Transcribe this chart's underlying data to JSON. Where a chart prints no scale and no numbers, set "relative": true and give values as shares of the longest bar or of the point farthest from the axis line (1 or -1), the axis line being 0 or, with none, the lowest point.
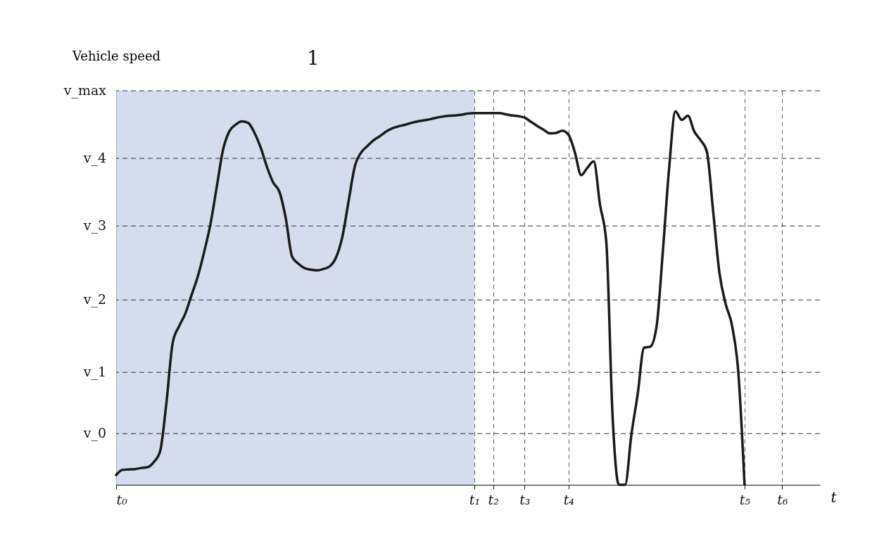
{
  "chart_data": {
    "type": "line",
    "relative": true,
    "xlabel": "t",
    "ylabel": "Vehicle speed",
    "categories": [
      "t₀",
      null,
      null,
      null,
      null,
      null,
      null,
      null,
      null,
      null,
      null,
      null,
      null,
      null,
      null,
      null,
      null,
      null,
      null,
      null,
      null,
      null,
      null,
      null,
      null,
      null,
      null,
      null,
      null,
      null,
      null,
      null,
      null,
      null,
      null,
      null,
      null,
      null,
      null,
      null,
      null,
      null,
      null,
      null,
      null,
      null,
      null,
      null,
      null,
      null,
      null,
      null,
      null,
      null,
      null,
      null,
      null,
      "t₁",
      null,
      null,
      "t₂",
      null,
      null,
      null,
      null,
      "t₃",
      null,
      null,
      null,
      null,
      null,
      null,
      "t₄",
      null,
      null,
      null,
      null,
      null,
      null,
      null,
      null,
      null,
      null,
      null,
      null,
      null,
      null,
      null,
      null,
      null,
      null,
      null,
      null,
      null,
      null,
      null,
      null,
      null,
      null,
      null,
      "t₅",
      null,
      null,
      null,
      null,
      null,
      "t₆",
      null,
      null,
      null,
      null,
      null,
      null
    ],
    "series": [
      {
        "color": "#1a1a1a",
        "values": [
          0.026,
          0.04,
          0.041,
          0.042,
          0.045,
          0.047,
          0.061,
          0.09,
          0.219,
          0.38,
          0.424,
          0.458,
          0.508,
          0.558,
          0.623,
          0.697,
          0.796,
          0.896,
          0.946,
          0.964,
          0.973,
          0.969,
          0.943,
          0.903,
          0.851,
          0.809,
          0.784,
          0.713,
          0.611,
          0.592,
          0.58,
          0.576,
          0.574,
          0.578,
          0.585,
          0.609,
          0.664,
          0.76,
          0.854,
          0.89,
          0.907,
          0.923,
          0.934,
          0.946,
          0.955,
          0.96,
          0.964,
          0.969,
          0.973,
          0.976,
          0.979,
          0.983,
          0.986,
          0.988,
          0.989,
          0.991,
          0.994,
          0.995,
          0.995,
          0.995,
          0.995,
          0.995,
          0.992,
          0.989,
          0.987,
          0.983,
          0.972,
          0.961,
          0.951,
          0.941,
          0.942,
          0.948,
          0.937,
          0.89,
          0.829,
          0.849,
          0.866,
          0.75,
          0.65,
          0.184,
          0,
          0,
          0.135,
          0.243,
          0.367,
          0.37,
          0.424,
          0.625,
          0.848,
          1.0,
          0.977,
          0.988,
          0.946,
          0.923,
          0.892,
          0.733,
          0.568,
          0.484,
          0.427,
          0.303,
          0,
          null,
          null,
          null,
          null,
          null,
          null,
          null,
          null,
          null,
          null,
          null,
          null
        ]
      }
    ],
    "grid": "x",
    "line_style": "solid",
    "ref_lines": [
      {
        "axis": "y",
        "value": 0.137,
        "label": "v_0",
        "line_style": "dashed"
      },
      {
        "axis": "y",
        "value": 0.301,
        "label": "v_1",
        "line_style": "dashed"
      },
      {
        "axis": "y",
        "value": 0.495,
        "label": "v_2",
        "line_style": "dashed"
      },
      {
        "axis": "y",
        "value": 0.693,
        "label": "v_3",
        "line_style": "dashed"
      },
      {
        "axis": "y",
        "value": 0.874,
        "label": "v_4",
        "line_style": "dashed"
      },
      {
        "axis": "y",
        "value": 1.055,
        "label": "v_max",
        "line_style": "dashed"
      }
    ],
    "bands": [
      {
        "axis": "x",
        "from": "t₀",
        "to": "t₁",
        "color": "#c9d3ea"
      }
    ],
    "annotations": [
      "1"
    ]
  }
}
